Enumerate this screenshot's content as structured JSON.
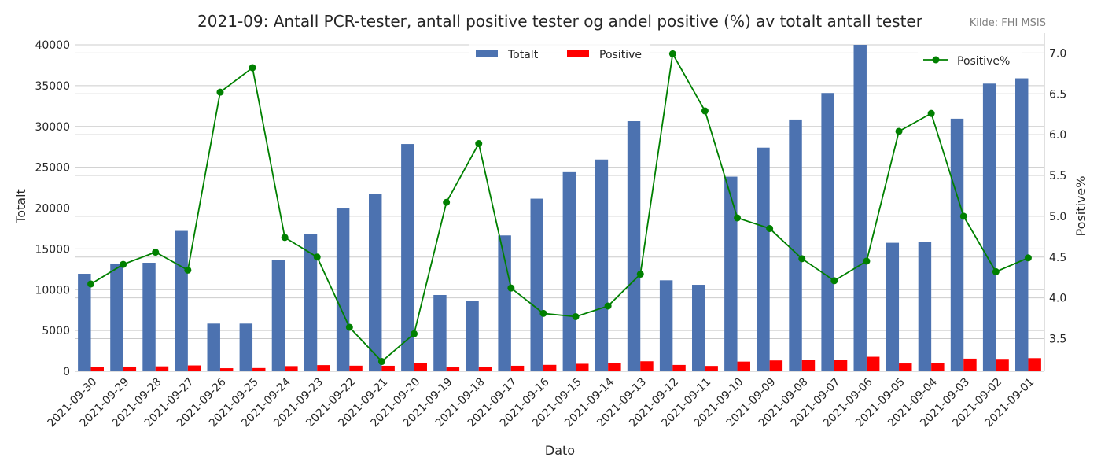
{
  "chart_data": {
    "type": "bar",
    "title": "2021-09: Antall PCR-tester, antall positive tester og andel positive (%) av totalt antall tester",
    "source_note": "Kilde: FHI MSIS",
    "xlabel": "Dato",
    "ylabel": "Totalt",
    "y2label": "Positive%",
    "ylim": [
      0,
      40000
    ],
    "y2lim": [
      3.1,
      7.1
    ],
    "yticks": [
      0,
      5000,
      10000,
      15000,
      20000,
      25000,
      30000,
      35000,
      40000
    ],
    "y2ticks": [
      3.5,
      4.0,
      4.5,
      5.0,
      5.5,
      6.0,
      6.5,
      7.0
    ],
    "y2tick_labels": [
      "3.5",
      "4.0",
      "4.5",
      "5.0",
      "5.5",
      "6.0",
      "6.5",
      "7.0"
    ],
    "legend_bars_position": "top-center",
    "legend_line_position": "top-right",
    "grid": true,
    "categories": [
      "2021-09-30",
      "2021-09-29",
      "2021-09-28",
      "2021-09-27",
      "2021-09-26",
      "2021-09-25",
      "2021-09-24",
      "2021-09-23",
      "2021-09-22",
      "2021-09-21",
      "2021-09-20",
      "2021-09-19",
      "2021-09-18",
      "2021-09-17",
      "2021-09-16",
      "2021-09-15",
      "2021-09-14",
      "2021-09-13",
      "2021-09-12",
      "2021-09-11",
      "2021-09-10",
      "2021-09-09",
      "2021-09-08",
      "2021-09-07",
      "2021-09-06",
      "2021-09-05",
      "2021-09-04",
      "2021-09-03",
      "2021-09-02",
      "2021-09-01"
    ],
    "series": [
      {
        "name": "Totalt",
        "kind": "bar",
        "axis": "left",
        "color": "#4c72b0",
        "values": [
          11950,
          13150,
          13300,
          17200,
          5850,
          5850,
          13600,
          16850,
          19950,
          21750,
          27850,
          9350,
          8650,
          16650,
          21150,
          24400,
          25950,
          30650,
          11150,
          10600,
          23850,
          27400,
          30850,
          34100,
          40000,
          15750,
          15850,
          30950,
          35250,
          35900
        ]
      },
      {
        "name": "Positive",
        "kind": "bar",
        "axis": "left",
        "color": "#ff0000",
        "values": [
          500,
          580,
          610,
          720,
          380,
          400,
          640,
          760,
          690,
          680,
          1000,
          480,
          510,
          680,
          790,
          920,
          1000,
          1230,
          780,
          660,
          1190,
          1330,
          1390,
          1430,
          1780,
          960,
          990,
          1550,
          1520,
          1610
        ]
      },
      {
        "name": "Positive%",
        "kind": "line",
        "axis": "right",
        "color": "#008000",
        "values": [
          4.17,
          4.41,
          4.56,
          4.34,
          6.52,
          6.82,
          4.74,
          4.5,
          3.64,
          3.22,
          3.56,
          5.17,
          5.89,
          4.12,
          3.81,
          3.77,
          3.9,
          4.29,
          6.99,
          6.29,
          4.98,
          4.85,
          4.48,
          4.21,
          4.45,
          6.04,
          6.26,
          5.0,
          4.32,
          4.49
        ]
      }
    ]
  }
}
